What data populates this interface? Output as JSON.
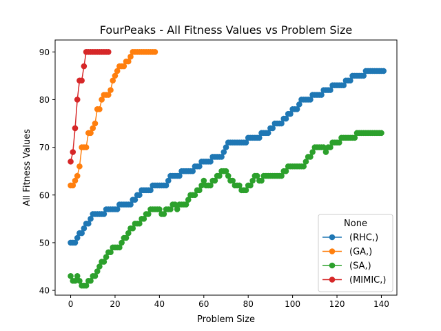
{
  "chart_data": {
    "type": "line",
    "title": "FourPeaks - All Fitness Values vs Problem Size",
    "xlabel": "Problem Size",
    "ylabel": "All Fitness Values",
    "xlim": [
      -7,
      147
    ],
    "ylim": [
      39,
      92.5
    ],
    "xticks": [
      0,
      20,
      40,
      60,
      80,
      100,
      120,
      140
    ],
    "yticks": [
      40,
      50,
      60,
      70,
      80,
      90
    ],
    "grid": false,
    "legend": {
      "title": "None",
      "position": "lower-right"
    },
    "series": [
      {
        "name": "(RHC,)",
        "color": "#1f77b4",
        "steps": [
          [
            0,
            50
          ],
          [
            3,
            51
          ],
          [
            4,
            52
          ],
          [
            6,
            53
          ],
          [
            7,
            54
          ],
          [
            9,
            55
          ],
          [
            10,
            56
          ],
          [
            16,
            57
          ],
          [
            22,
            58
          ],
          [
            28,
            59
          ],
          [
            30,
            60
          ],
          [
            32,
            61
          ],
          [
            37,
            62
          ],
          [
            44,
            63
          ],
          [
            45,
            64
          ],
          [
            50,
            65
          ],
          [
            56,
            66
          ],
          [
            59,
            67
          ],
          [
            64,
            68
          ],
          [
            69,
            69
          ],
          [
            70,
            70
          ],
          [
            71,
            71
          ],
          [
            80,
            72
          ],
          [
            86,
            73
          ],
          [
            90,
            74
          ],
          [
            92,
            75
          ],
          [
            96,
            76
          ],
          [
            98,
            77
          ],
          [
            100,
            78
          ],
          [
            103,
            79
          ],
          [
            104,
            80
          ],
          [
            109,
            81
          ],
          [
            114,
            82
          ],
          [
            118,
            83
          ],
          [
            124,
            84
          ],
          [
            127,
            85
          ],
          [
            133,
            86
          ],
          [
            141,
            86
          ]
        ]
      },
      {
        "name": "(GA,)",
        "color": "#ff7f0e",
        "steps": [
          [
            0,
            62
          ],
          [
            2,
            63
          ],
          [
            3,
            64
          ],
          [
            4,
            66
          ],
          [
            5,
            70
          ],
          [
            8,
            73
          ],
          [
            10,
            74
          ],
          [
            11,
            75
          ],
          [
            12,
            78
          ],
          [
            14,
            80
          ],
          [
            15,
            81
          ],
          [
            18,
            82
          ],
          [
            19,
            84
          ],
          [
            20,
            85
          ],
          [
            21,
            86
          ],
          [
            22,
            87
          ],
          [
            25,
            88
          ],
          [
            27,
            89
          ],
          [
            28,
            90
          ],
          [
            38,
            90
          ]
        ]
      },
      {
        "name": "(SA,)",
        "color": "#2ca02c",
        "steps": [
          [
            0,
            43
          ],
          [
            1,
            42
          ],
          [
            3,
            43
          ],
          [
            4,
            42
          ],
          [
            5,
            41
          ],
          [
            8,
            42
          ],
          [
            10,
            43
          ],
          [
            12,
            44
          ],
          [
            13,
            45
          ],
          [
            14,
            46
          ],
          [
            16,
            47
          ],
          [
            17,
            48
          ],
          [
            19,
            49
          ],
          [
            23,
            50
          ],
          [
            24,
            51
          ],
          [
            26,
            52
          ],
          [
            27,
            53
          ],
          [
            29,
            54
          ],
          [
            32,
            55
          ],
          [
            34,
            56
          ],
          [
            36,
            57
          ],
          [
            41,
            56
          ],
          [
            43,
            57
          ],
          [
            46,
            58
          ],
          [
            48,
            57
          ],
          [
            49,
            58
          ],
          [
            53,
            59
          ],
          [
            54,
            60
          ],
          [
            57,
            61
          ],
          [
            59,
            62
          ],
          [
            60,
            63
          ],
          [
            61,
            62
          ],
          [
            64,
            63
          ],
          [
            66,
            64
          ],
          [
            68,
            65
          ],
          [
            71,
            64
          ],
          [
            72,
            63
          ],
          [
            74,
            62
          ],
          [
            77,
            61
          ],
          [
            80,
            62
          ],
          [
            82,
            63
          ],
          [
            83,
            64
          ],
          [
            85,
            63
          ],
          [
            87,
            64
          ],
          [
            96,
            65
          ],
          [
            98,
            66
          ],
          [
            106,
            67
          ],
          [
            107,
            68
          ],
          [
            109,
            69
          ],
          [
            110,
            70
          ],
          [
            115,
            69
          ],
          [
            116,
            70
          ],
          [
            118,
            71
          ],
          [
            122,
            72
          ],
          [
            129,
            73
          ],
          [
            140,
            73
          ]
        ]
      },
      {
        "name": "(MIMIC,)",
        "color": "#d62728",
        "steps": [
          [
            0,
            67
          ],
          [
            1,
            69
          ],
          [
            2,
            74
          ],
          [
            3,
            80
          ],
          [
            4,
            84
          ],
          [
            6,
            87
          ],
          [
            7,
            90
          ],
          [
            17,
            90
          ]
        ]
      }
    ]
  }
}
